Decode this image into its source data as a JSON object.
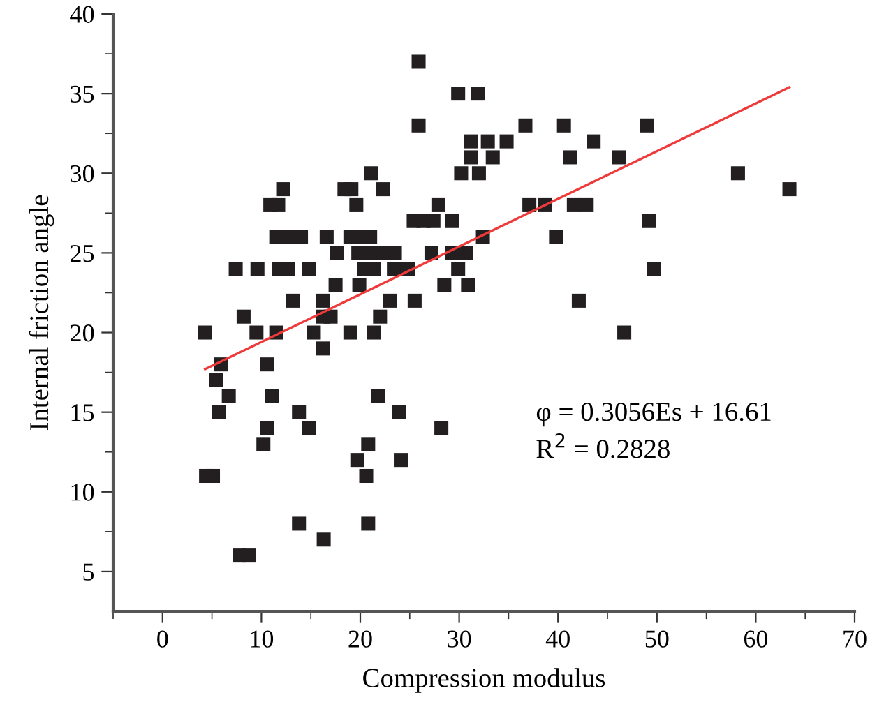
{
  "chart_data": {
    "type": "scatter",
    "xlabel": "Compression modulus",
    "ylabel": "Internal friction angle",
    "xlim": [
      -5,
      70
    ],
    "ylim": [
      2.5,
      40
    ],
    "xticks": [
      {
        "value": -5,
        "label": null
      },
      0,
      {
        "value": 5,
        "label": null
      },
      10,
      {
        "value": 15,
        "label": null
      },
      20,
      {
        "value": 25,
        "label": null
      },
      30,
      {
        "value": 35,
        "label": null
      },
      40,
      {
        "value": 45,
        "label": null
      },
      50,
      {
        "value": 55,
        "label": null
      },
      60,
      {
        "value": 65,
        "label": null
      },
      70
    ],
    "yticks": [
      5,
      {
        "value": 7.5,
        "label": null
      },
      10,
      {
        "value": 12.5,
        "label": null
      },
      15,
      {
        "value": 17.5,
        "label": null
      },
      20,
      {
        "value": 22.5,
        "label": null
      },
      25,
      {
        "value": 27.5,
        "label": null
      },
      30,
      {
        "value": 32.5,
        "label": null
      },
      35,
      {
        "value": 37.5,
        "label": null
      },
      40
    ],
    "grid": false,
    "legend": false,
    "annotations": [
      "φ = 0.3056Es + 16.61",
      "R$^{2}$ = 0.2828"
    ],
    "series": [
      {
        "marker": "square",
        "color": "#231f20",
        "x": [
          21.1,
          12.2,
          18.4,
          19.1,
          22.3,
          10.9,
          11.7,
          19.6,
          11.5,
          12.8,
          14.0,
          16.6,
          19.0,
          20.0,
          21.0,
          17.6,
          19.8,
          21.1,
          22.4,
          23.5,
          7.4,
          9.6,
          11.8,
          12.7,
          14.8,
          20.4,
          21.4,
          23.4,
          24.8,
          29.9,
          49.7,
          17.5,
          19.9,
          13.2,
          16.2,
          23.0,
          25.5,
          42.1,
          8.2,
          16.2,
          17.0,
          22.0,
          4.3,
          9.5,
          11.5,
          15.3,
          19.0,
          21.4,
          46.7,
          16.2,
          5.9,
          10.6,
          5.4,
          6.7,
          11.1,
          21.8,
          5.7,
          13.8,
          10.6,
          14.8,
          10.2,
          20.8,
          19.7,
          4.4,
          5.1,
          20.6,
          13.8,
          20.8,
          16.3,
          7.8,
          8.7,
          23.9,
          28.2,
          24.1,
          25.9,
          29.9,
          31.9,
          25.9,
          36.7,
          40.6,
          49.0,
          31.2,
          32.9,
          34.8,
          43.6,
          31.2,
          33.4,
          41.2,
          46.2,
          30.2,
          32.0,
          58.2,
          63.4,
          27.9,
          37.1,
          38.7,
          41.6,
          42.9,
          25.4,
          26.4,
          27.4,
          29.3,
          49.2,
          32.4,
          39.8,
          27.2,
          29.3,
          30.7,
          28.5,
          30.9
        ],
        "values": [
          30,
          29,
          29,
          29,
          29,
          28,
          28,
          28,
          26,
          26,
          26,
          26,
          26,
          26,
          26,
          25,
          25,
          25,
          25,
          25,
          24,
          24,
          24,
          24,
          24,
          24,
          24,
          24,
          24,
          24,
          24,
          23,
          23,
          22,
          22,
          22,
          22,
          22,
          21,
          21,
          21,
          21,
          20,
          20,
          20,
          20,
          20,
          20,
          20,
          19,
          18,
          18,
          17,
          16,
          16,
          16,
          15,
          15,
          14,
          14,
          13,
          13,
          12,
          11,
          11,
          11,
          8,
          8,
          7,
          6,
          6,
          15,
          14,
          12,
          37,
          35,
          35,
          33,
          33,
          33,
          33,
          32,
          32,
          32,
          32,
          31,
          31,
          31,
          31,
          30,
          30,
          30,
          29,
          28,
          28,
          28,
          28,
          28,
          27,
          27,
          27,
          27,
          27,
          26,
          26,
          25,
          25,
          25,
          23,
          23
        ]
      },
      {
        "type": "line",
        "color": "#ee3a3a",
        "line_style": "solid",
        "marker": "none",
        "x": [
          4.3,
          63.4
        ],
        "values": [
          17.7,
          35.4
        ]
      }
    ]
  }
}
